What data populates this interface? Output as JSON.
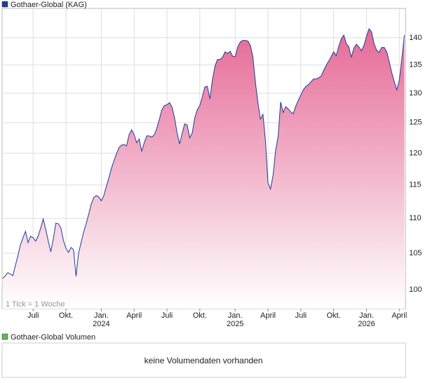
{
  "chart_data": {
    "type": "area",
    "log_y": true,
    "grid": true,
    "annotation": "1 Tick = 1 Woche",
    "categories": [
      null,
      null,
      null,
      null,
      null,
      null,
      null,
      null,
      null,
      null,
      null,
      null,
      "Juli",
      null,
      null,
      null,
      null,
      null,
      null,
      null,
      null,
      null,
      null,
      null,
      null,
      "Okt.",
      null,
      null,
      null,
      null,
      null,
      null,
      null,
      null,
      null,
      null,
      null,
      null,
      null,
      "Jan.",
      null,
      null,
      null,
      null,
      null,
      null,
      null,
      null,
      null,
      null,
      null,
      null,
      "April",
      null,
      null,
      null,
      null,
      null,
      null,
      null,
      null,
      null,
      null,
      null,
      null,
      "Juli",
      null,
      null,
      null,
      null,
      null,
      null,
      null,
      null,
      null,
      null,
      null,
      null,
      "Okt.",
      null,
      null,
      null,
      null,
      null,
      null,
      null,
      null,
      null,
      null,
      null,
      null,
      null,
      "Jan.",
      null,
      null,
      null,
      null,
      null,
      null,
      null,
      null,
      null,
      null,
      null,
      null,
      "April",
      null,
      null,
      null,
      null,
      null,
      null,
      null,
      null,
      null,
      null,
      null,
      null,
      "Juli",
      null,
      null,
      null,
      null,
      null,
      null,
      null,
      null,
      null,
      null,
      null,
      null,
      "Okt.",
      null,
      null,
      null,
      null,
      null,
      null,
      null,
      null,
      null,
      null,
      null,
      null,
      "Jan.",
      null,
      null,
      null,
      null,
      null,
      null,
      null,
      null,
      null,
      null,
      null,
      null,
      "April",
      null,
      null
    ],
    "category_years": {
      "39": "2024",
      "92": "2025",
      "144": "2026"
    },
    "series": [
      {
        "name": "Gothaer-Global (KAG)",
        "color": "#1f3a9e",
        "fill_top": "#e56a96",
        "fill_bottom": "#ffffff",
        "values": [
          101.5,
          101.9,
          102.3,
          102.1,
          101.9,
          103.3,
          104.7,
          106.2,
          107.2,
          108.1,
          106.5,
          107.4,
          107.2,
          106.7,
          107.4,
          108.6,
          109.9,
          108.4,
          106.7,
          105.2,
          107,
          109.3,
          109.2,
          108.6,
          106.8,
          105.7,
          105.1,
          105.8,
          105.5,
          101.8,
          105,
          106.5,
          108,
          109.2,
          110.6,
          112.1,
          113.1,
          113.4,
          113.2,
          112.6,
          113.4,
          114.8,
          116.1,
          117.6,
          118.8,
          119.9,
          120.9,
          121.3,
          121.4,
          121.2,
          123,
          123.8,
          123,
          121.7,
          122.3,
          120.3,
          121.7,
          122.8,
          122.8,
          122.6,
          123,
          124.1,
          125.6,
          127.2,
          127.9,
          128,
          128.4,
          127.6,
          125.8,
          123.3,
          121.5,
          123.2,
          124.8,
          124.6,
          122.5,
          123.3,
          125.8,
          127.2,
          127.9,
          129.4,
          131.1,
          131.2,
          129,
          132.4,
          134.8,
          136,
          136,
          136.4,
          137.4,
          137.1,
          137.5,
          136.6,
          136.5,
          138.3,
          139.2,
          139.5,
          139.5,
          139.4,
          138.6,
          136.5,
          132,
          128.4,
          125.6,
          126.4,
          122,
          115.3,
          114.4,
          116.5,
          120.4,
          122.7,
          128.5,
          126.7,
          127.7,
          127.3,
          126.8,
          126.5,
          127.8,
          128.8,
          129.7,
          130.6,
          131.2,
          131.5,
          132,
          132.5,
          132.5,
          132.7,
          133,
          134,
          134.9,
          135.7,
          136.5,
          137.4,
          136.7,
          138.4,
          139.8,
          140.5,
          138.9,
          138.3,
          136.4,
          138.1,
          138.8,
          138.3,
          137.6,
          138.6,
          140.3,
          141.7,
          141.1,
          138.9,
          137.7,
          137.3,
          138.2,
          138.2,
          137.4,
          135.6,
          133.6,
          132,
          130.6,
          132.3,
          136.2,
          140.5
        ]
      }
    ],
    "ylim": [
      97.5,
      145.6
    ],
    "yticks": [
      100,
      105,
      110,
      115,
      120,
      125,
      130,
      135,
      140
    ],
    "volume_panel": {
      "legend": "Gothaer-Global Volumen",
      "message": "keine Volumendaten vorhanden",
      "color": "#5cb85c"
    }
  }
}
